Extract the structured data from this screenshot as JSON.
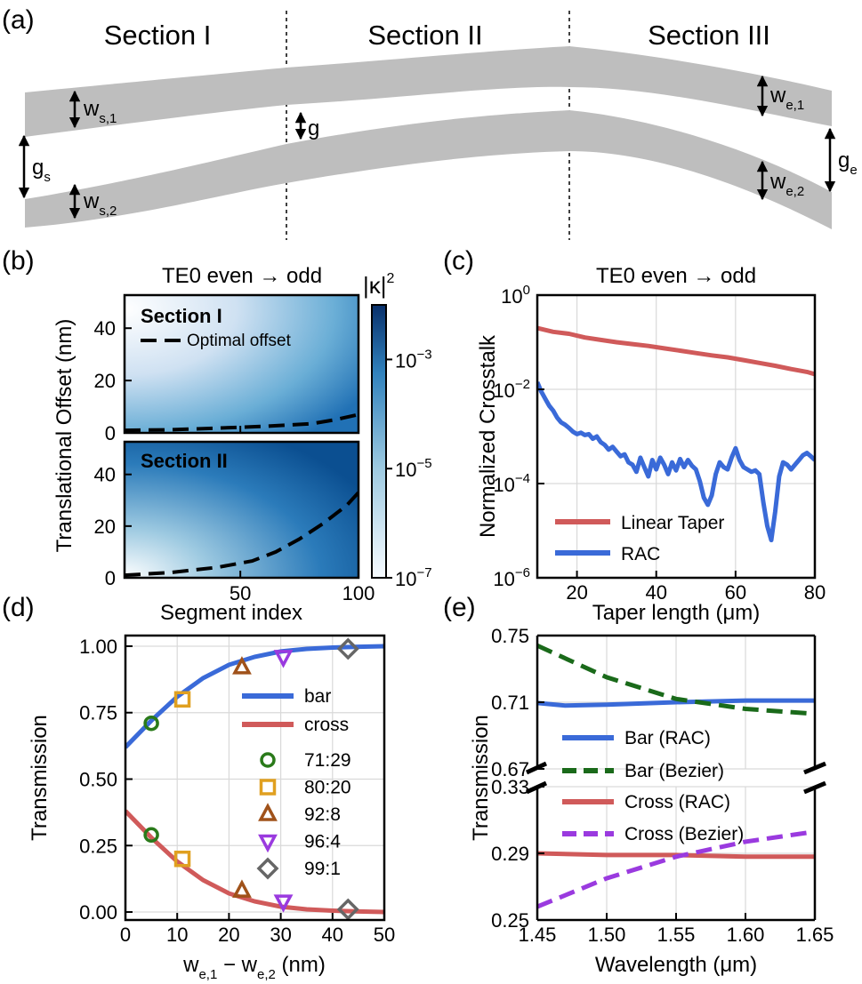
{
  "panel_labels": {
    "a": "(a)",
    "b": "(b)",
    "c": "(c)",
    "d": "(d)",
    "e": "(e)"
  },
  "schematic": {
    "sections": [
      "Section I",
      "Section II",
      "Section III"
    ],
    "labels": {
      "ws1_main": "w",
      "ws1_sub": "s,1",
      "ws2_main": "w",
      "ws2_sub": "s,2",
      "gs_main": "g",
      "gs_sub": "s",
      "g": "g",
      "we1_main": "w",
      "we1_sub": "e,1",
      "we2_main": "w",
      "we2_sub": "e,2",
      "ge_main": "g",
      "ge_sub": "e"
    },
    "waveguide_color": "#bebebe"
  },
  "chart_data": [
    {
      "panel": "b",
      "type": "heatmap",
      "title": "TE0 even → odd",
      "xlabel": "Segment index",
      "ylabel": "Translational Offset (nm)",
      "xlim": [
        1,
        100
      ],
      "ylim": [
        0,
        50
      ],
      "xticks": [
        {
          "v": 50,
          "t": "50"
        },
        {
          "v": 100,
          "t": "100"
        }
      ],
      "yticks": [
        {
          "v": 0,
          "t": "0"
        },
        {
          "v": 20,
          "t": "20"
        },
        {
          "v": 40,
          "t": "40"
        }
      ],
      "colorbar": {
        "label_main": "|κ|",
        "label_exp": "2",
        "range_log10": [
          -7,
          -2
        ],
        "ticks": [
          {
            "v": -3,
            "main": "10",
            "exp": "−3"
          },
          {
            "v": -5,
            "main": "10",
            "exp": "−5"
          },
          {
            "v": -7,
            "main": "10",
            "exp": "−7"
          }
        ],
        "color_low": "#f7fbff",
        "color_high": "#08306b"
      },
      "subplots": [
        {
          "name": "Section I",
          "optimal_offset": {
            "x": [
              1,
              20,
              40,
              60,
              80,
              90,
              100
            ],
            "y": [
              1,
              1.2,
              1.8,
              2.5,
              3.5,
              5,
              7
            ]
          }
        },
        {
          "name": "Section II",
          "optimal_offset": {
            "x": [
              1,
              20,
              40,
              55,
              65,
              75,
              85,
              95,
              100
            ],
            "y": [
              1,
              2,
              4,
              6.5,
              10,
              15,
              21,
              28,
              33
            ]
          }
        }
      ],
      "legend": {
        "label": "Optimal offset",
        "color": "#000000"
      }
    },
    {
      "panel": "c",
      "type": "line",
      "title": "TE0 even → odd",
      "xlabel": "Taper length (μm)",
      "ylabel": "Normalized Crosstalk",
      "xlim": [
        10,
        80
      ],
      "ylim_log10": [
        -6,
        0
      ],
      "xticks": [
        {
          "v": 20,
          "t": "20"
        },
        {
          "v": 40,
          "t": "40"
        },
        {
          "v": 60,
          "t": "60"
        },
        {
          "v": 80,
          "t": "80"
        }
      ],
      "yticks": [
        {
          "v": 0,
          "main": "10",
          "exp": "0"
        },
        {
          "v": -2,
          "main": "10",
          "exp": "−2"
        },
        {
          "v": -4,
          "main": "10",
          "exp": "−4"
        },
        {
          "v": -6,
          "main": "10",
          "exp": "−6"
        }
      ],
      "series": [
        {
          "name": "Linear Taper",
          "color": "#d05a5a",
          "x": [
            10,
            14,
            18,
            22,
            26,
            30,
            34,
            38,
            42,
            46,
            50,
            54,
            58,
            62,
            66,
            70,
            74,
            78,
            80
          ],
          "log10y": [
            -0.7,
            -0.78,
            -0.82,
            -0.9,
            -0.95,
            -1.0,
            -1.04,
            -1.08,
            -1.13,
            -1.18,
            -1.23,
            -1.28,
            -1.32,
            -1.38,
            -1.44,
            -1.5,
            -1.57,
            -1.63,
            -1.68
          ]
        },
        {
          "name": "RAC",
          "color": "#3a6ad8",
          "x": [
            10,
            11,
            12,
            13,
            14,
            15,
            16,
            17,
            18,
            19,
            20,
            21,
            22,
            23,
            24,
            25,
            26,
            27,
            28,
            29,
            30,
            31,
            32,
            33,
            34,
            35,
            36,
            37,
            38,
            39,
            40,
            41,
            42,
            43,
            44,
            45,
            46,
            47,
            48,
            49,
            50,
            51,
            52,
            53,
            54,
            55,
            56,
            57,
            58,
            59,
            60,
            61,
            62,
            63,
            64,
            65,
            66,
            67,
            68,
            69,
            70,
            71,
            72,
            73,
            74,
            75,
            76,
            77,
            78,
            79,
            80
          ],
          "log10y": [
            -1.85,
            -2.05,
            -2.2,
            -2.35,
            -2.45,
            -2.6,
            -2.7,
            -2.75,
            -2.82,
            -2.9,
            -2.95,
            -2.92,
            -2.97,
            -2.95,
            -3.05,
            -3.0,
            -3.12,
            -3.18,
            -3.28,
            -3.22,
            -3.32,
            -3.42,
            -3.38,
            -3.55,
            -3.6,
            -3.75,
            -3.45,
            -3.65,
            -3.85,
            -3.5,
            -3.7,
            -3.45,
            -3.6,
            -3.8,
            -3.55,
            -3.72,
            -3.48,
            -3.65,
            -3.5,
            -3.62,
            -3.7,
            -3.95,
            -4.3,
            -4.45,
            -4.25,
            -3.8,
            -3.55,
            -3.65,
            -3.7,
            -3.45,
            -3.25,
            -3.5,
            -3.65,
            -3.7,
            -3.75,
            -3.72,
            -3.8,
            -4.4,
            -4.9,
            -5.2,
            -4.6,
            -3.85,
            -3.55,
            -3.6,
            -3.7,
            -3.6,
            -3.5,
            -3.4,
            -3.35,
            -3.42,
            -3.5
          ]
        }
      ]
    },
    {
      "panel": "d",
      "type": "line",
      "xlabel_main": "w",
      "xlabel_sub1": "e,1",
      "xlabel_mid": " − w",
      "xlabel_sub2": "e,2",
      "xlabel_unit": " (nm)",
      "ylabel": "Transmission",
      "xlim": [
        0,
        50
      ],
      "ylim": [
        -0.03,
        1.04
      ],
      "xticks": [
        {
          "v": 0,
          "t": "0"
        },
        {
          "v": 10,
          "t": "10"
        },
        {
          "v": 20,
          "t": "20"
        },
        {
          "v": 30,
          "t": "30"
        },
        {
          "v": 40,
          "t": "40"
        },
        {
          "v": 50,
          "t": "50"
        }
      ],
      "yticks": [
        {
          "v": 0,
          "t": "0.00"
        },
        {
          "v": 0.25,
          "t": "0.25"
        },
        {
          "v": 0.5,
          "t": "0.50"
        },
        {
          "v": 0.75,
          "t": "0.75"
        },
        {
          "v": 1,
          "t": "1.00"
        }
      ],
      "series": [
        {
          "name": "bar",
          "color": "#3a6ad8",
          "x": [
            0,
            5,
            10,
            15,
            20,
            25,
            30,
            35,
            40,
            45,
            50
          ],
          "y": [
            0.62,
            0.72,
            0.81,
            0.88,
            0.93,
            0.96,
            0.98,
            0.99,
            0.995,
            0.998,
            1.0
          ]
        },
        {
          "name": "cross",
          "color": "#d05a5a",
          "x": [
            0,
            5,
            10,
            15,
            20,
            25,
            30,
            35,
            40,
            45,
            50
          ],
          "y": [
            0.38,
            0.28,
            0.19,
            0.12,
            0.07,
            0.04,
            0.02,
            0.01,
            0.005,
            0.002,
            0.0
          ]
        }
      ],
      "markers": [
        {
          "name": "71:29",
          "shape": "circle",
          "color": "#2a7a1a",
          "x": 5,
          "bar": 0.71,
          "cross": 0.29
        },
        {
          "name": "80:20",
          "shape": "square",
          "color": "#e0a020",
          "x": 11,
          "bar": 0.8,
          "cross": 0.2
        },
        {
          "name": "92:8",
          "shape": "triangle-up",
          "color": "#a0521a",
          "x": 22.5,
          "bar": 0.92,
          "cross": 0.08
        },
        {
          "name": "96:4",
          "shape": "triangle-down",
          "color": "#9a3adf",
          "x": 30.5,
          "bar": 0.96,
          "cross": 0.04
        },
        {
          "name": "99:1",
          "shape": "diamond",
          "color": "#666666",
          "x": 43,
          "bar": 0.99,
          "cross": 0.01
        }
      ]
    },
    {
      "panel": "e",
      "type": "line",
      "xlabel": "Wavelength (μm)",
      "ylabel": "Transmission",
      "xlim": [
        1.45,
        1.65
      ],
      "ylim_upper": [
        0.67,
        0.75
      ],
      "ylim_lower": [
        0.25,
        0.33
      ],
      "xticks": [
        {
          "v": 1.45,
          "t": "1.45"
        },
        {
          "v": 1.5,
          "t": "1.50"
        },
        {
          "v": 1.55,
          "t": "1.55"
        },
        {
          "v": 1.6,
          "t": "1.60"
        },
        {
          "v": 1.65,
          "t": "1.65"
        }
      ],
      "yticks_upper": [
        {
          "v": 0.75,
          "t": "0.75"
        },
        {
          "v": 0.71,
          "t": "0.71"
        },
        {
          "v": 0.67,
          "t": "0.67"
        }
      ],
      "yticks_lower": [
        {
          "v": 0.33,
          "t": "0.33"
        },
        {
          "v": 0.29,
          "t": "0.29"
        },
        {
          "v": 0.25,
          "t": "0.25"
        }
      ],
      "series": [
        {
          "name": "Bar (RAC)",
          "color": "#3a6ad8",
          "dash": false,
          "axis": "upper",
          "x": [
            1.45,
            1.47,
            1.5,
            1.55,
            1.6,
            1.65
          ],
          "y": [
            0.7095,
            0.708,
            0.7085,
            0.71,
            0.711,
            0.711
          ]
        },
        {
          "name": "Bar (Bezier)",
          "color": "#1a6a1a",
          "dash": true,
          "axis": "upper",
          "x": [
            1.45,
            1.5,
            1.55,
            1.6,
            1.65
          ],
          "y": [
            0.744,
            0.725,
            0.712,
            0.706,
            0.703
          ]
        },
        {
          "name": "Cross (RAC)",
          "color": "#d05a5a",
          "dash": false,
          "axis": "lower",
          "x": [
            1.45,
            1.5,
            1.55,
            1.6,
            1.65
          ],
          "y": [
            0.29,
            0.289,
            0.289,
            0.288,
            0.288
          ]
        },
        {
          "name": "Cross (Bezier)",
          "color": "#9a3adf",
          "dash": true,
          "axis": "lower",
          "x": [
            1.45,
            1.5,
            1.55,
            1.6,
            1.65
          ],
          "y": [
            0.258,
            0.275,
            0.288,
            0.297,
            0.303
          ]
        }
      ]
    }
  ]
}
